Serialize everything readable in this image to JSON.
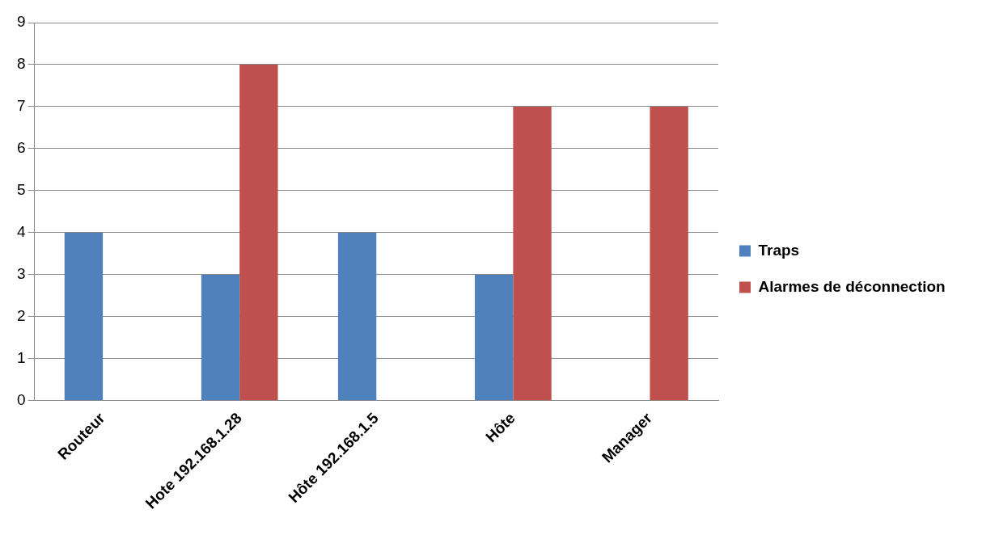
{
  "chart_data": {
    "type": "bar",
    "categories": [
      "Routeur",
      "Hote 192.168.1.28",
      "Hôte 192.168.1.5",
      "Hôte",
      "Manager"
    ],
    "series": [
      {
        "name": "Traps",
        "color": "#4f81bd",
        "values": [
          4,
          3,
          4,
          3,
          null
        ]
      },
      {
        "name": "Alarmes de déconnection",
        "color": "#c0504d",
        "values": [
          null,
          8,
          null,
          7,
          7
        ]
      }
    ],
    "ylim": [
      0,
      9
    ],
    "yticks": [
      0,
      1,
      2,
      3,
      4,
      5,
      6,
      7,
      8,
      9
    ],
    "grid": "y",
    "legend": "right"
  }
}
